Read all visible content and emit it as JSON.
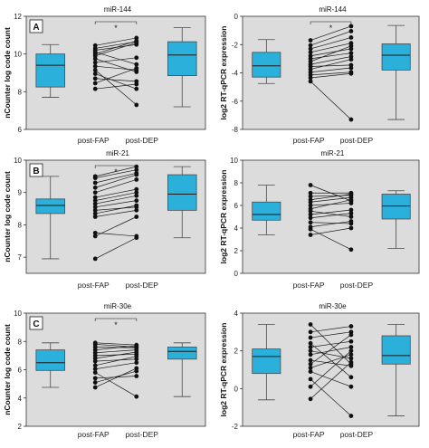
{
  "colors": {
    "panel_bg": "#dcdcdc",
    "box_fill": "#2bb0dc",
    "box_stroke": "#4a4a4a",
    "line": "#1a1a1a",
    "dot": "#111111",
    "axis": "#333333"
  },
  "x_labels": [
    "post-FAP",
    "post-DEP"
  ],
  "chart_data": [
    {
      "type": "box+paired",
      "panel_letter": "A",
      "title": "miR-144",
      "ylabel": "nCounter log code count",
      "ylim": [
        6,
        12
      ],
      "yticks": [
        "6",
        "8",
        "10",
        "12"
      ],
      "significance": "*",
      "box_left": {
        "whisker_low": 7.7,
        "q1": 8.25,
        "median": 9.4,
        "q3": 10.0,
        "whisker_high": 10.5
      },
      "box_right": {
        "whisker_low": 7.2,
        "q1": 8.85,
        "median": 9.95,
        "q3": 10.65,
        "whisker_high": 11.4
      },
      "pairs": [
        [
          10.45,
          10.85
        ],
        [
          10.3,
          10.65
        ],
        [
          10.2,
          10.5
        ],
        [
          10.1,
          9.45
        ],
        [
          10.0,
          10.7
        ],
        [
          9.9,
          10.6
        ],
        [
          9.75,
          9.05
        ],
        [
          9.55,
          9.8
        ],
        [
          9.35,
          9.15
        ],
        [
          9.15,
          7.3
        ],
        [
          8.95,
          8.15
        ],
        [
          8.7,
          8.55
        ],
        [
          8.45,
          9.25
        ],
        [
          8.15,
          8.4
        ]
      ]
    },
    {
      "type": "box+paired",
      "panel_letter": "",
      "title": "miR-144",
      "ylabel": "log2 RT-qPCR expression",
      "ylim": [
        -8,
        0
      ],
      "yticks": [
        "-8",
        "-6",
        "-4",
        "-2",
        "0"
      ],
      "significance": "*",
      "box_left": {
        "whisker_low": -4.75,
        "q1": -4.3,
        "median": -3.5,
        "q3": -2.55,
        "whisker_high": -1.65
      },
      "box_right": {
        "whisker_low": -7.3,
        "q1": -3.8,
        "median": -2.75,
        "q3": -1.95,
        "whisker_high": -0.65
      },
      "pairs": [
        [
          -1.7,
          -0.7
        ],
        [
          -2.05,
          -1.05
        ],
        [
          -2.3,
          -1.5
        ],
        [
          -2.55,
          -1.9
        ],
        [
          -2.8,
          -2.3
        ],
        [
          -3.0,
          -2.6
        ],
        [
          -3.2,
          -2.1
        ],
        [
          -3.4,
          -2.85
        ],
        [
          -3.55,
          -3.45
        ],
        [
          -3.75,
          -3.05
        ],
        [
          -3.95,
          -3.65
        ],
        [
          -4.15,
          -3.95
        ],
        [
          -4.35,
          -4.05
        ],
        [
          -4.6,
          -7.3
        ]
      ]
    },
    {
      "type": "box+paired",
      "panel_letter": "B",
      "title": "miR-21",
      "ylabel": "nCounter log code count",
      "ylim": [
        6.5,
        10
      ],
      "yticks": [
        "7",
        "8",
        "9",
        "10"
      ],
      "significance": "*",
      "box_left": {
        "whisker_low": 6.95,
        "q1": 8.35,
        "median": 8.6,
        "q3": 8.8,
        "whisker_high": 9.5
      },
      "box_right": {
        "whisker_low": 7.6,
        "q1": 8.45,
        "median": 8.95,
        "q3": 9.55,
        "whisker_high": 9.8
      },
      "pairs": [
        [
          9.5,
          9.8
        ],
        [
          9.45,
          9.7
        ],
        [
          9.3,
          9.6
        ],
        [
          9.15,
          9.55
        ],
        [
          9.0,
          9.4
        ],
        [
          8.85,
          9.1
        ],
        [
          8.75,
          9.0
        ],
        [
          8.65,
          8.9
        ],
        [
          8.55,
          8.75
        ],
        [
          8.45,
          8.55
        ],
        [
          8.35,
          8.6
        ],
        [
          8.25,
          8.45
        ],
        [
          7.75,
          7.65
        ],
        [
          7.65,
          8.25
        ],
        [
          6.95,
          7.6
        ]
      ]
    },
    {
      "type": "box+paired",
      "panel_letter": "",
      "title": "miR-21",
      "ylabel": "log2 RT-qPCR expression",
      "ylim": [
        0,
        10
      ],
      "yticks": [
        "0",
        "2",
        "4",
        "6",
        "8",
        "10"
      ],
      "significance": "",
      "box_left": {
        "whisker_low": 3.4,
        "q1": 4.7,
        "median": 5.2,
        "q3": 6.3,
        "whisker_high": 7.8
      },
      "box_right": {
        "whisker_low": 2.2,
        "q1": 4.8,
        "median": 5.95,
        "q3": 7.0,
        "whisker_high": 7.3
      },
      "pairs": [
        [
          7.8,
          6.4
        ],
        [
          7.1,
          7.1
        ],
        [
          6.8,
          6.9
        ],
        [
          6.5,
          7.0
        ],
        [
          6.3,
          6.7
        ],
        [
          6.0,
          6.2
        ],
        [
          5.7,
          6.5
        ],
        [
          5.5,
          5.0
        ],
        [
          5.2,
          5.6
        ],
        [
          4.9,
          5.3
        ],
        [
          4.5,
          4.4
        ],
        [
          4.1,
          4.6
        ],
        [
          3.9,
          2.1
        ],
        [
          3.4,
          4.0
        ]
      ]
    },
    {
      "type": "box+paired",
      "panel_letter": "C",
      "title": "miR-30e",
      "ylabel": "nCounter log code count",
      "ylim": [
        2,
        10
      ],
      "yticks": [
        "2",
        "4",
        "6",
        "8",
        "10"
      ],
      "significance": "*",
      "box_left": {
        "whisker_low": 4.75,
        "q1": 5.95,
        "median": 6.5,
        "q3": 7.4,
        "whisker_high": 7.9
      },
      "box_right": {
        "whisker_low": 4.1,
        "q1": 6.75,
        "median": 7.3,
        "q3": 7.6,
        "whisker_high": 7.9
      },
      "pairs": [
        [
          7.9,
          7.75
        ],
        [
          7.8,
          7.6
        ],
        [
          7.6,
          7.55
        ],
        [
          7.4,
          7.7
        ],
        [
          7.2,
          7.4
        ],
        [
          7.0,
          7.1
        ],
        [
          6.8,
          7.25
        ],
        [
          6.6,
          6.75
        ],
        [
          6.3,
          6.95
        ],
        [
          6.05,
          6.5
        ],
        [
          5.8,
          4.1
        ],
        [
          5.4,
          5.55
        ],
        [
          5.1,
          5.9
        ],
        [
          4.75,
          6.1
        ]
      ]
    },
    {
      "type": "box+paired",
      "panel_letter": "",
      "title": "miR-30e",
      "ylabel": "log2 RT-qPCR expression",
      "ylim": [
        -2,
        4
      ],
      "yticks": [
        "-2",
        "0",
        "2",
        "4"
      ],
      "significance": "",
      "box_left": {
        "whisker_low": -0.6,
        "q1": 0.8,
        "median": 1.7,
        "q3": 2.1,
        "whisker_high": 3.4
      },
      "box_right": {
        "whisker_low": -1.45,
        "q1": 1.3,
        "median": 1.75,
        "q3": 2.8,
        "whisker_high": 3.4
      },
      "pairs": [
        [
          3.4,
          1.3
        ],
        [
          3.0,
          3.3
        ],
        [
          2.7,
          3.0
        ],
        [
          2.4,
          0.6
        ],
        [
          2.2,
          2.5
        ],
        [
          2.0,
          1.6
        ],
        [
          1.8,
          2.2
        ],
        [
          1.5,
          1.2
        ],
        [
          1.3,
          2.85
        ],
        [
          1.1,
          1.8
        ],
        [
          0.9,
          0.1
        ],
        [
          0.5,
          -1.45
        ],
        [
          0.1,
          2.0
        ],
        [
          -0.55,
          1.4
        ]
      ]
    }
  ]
}
